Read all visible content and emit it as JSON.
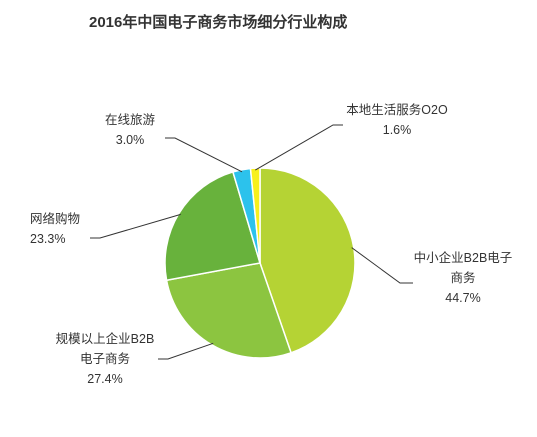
{
  "chart_data": {
    "type": "pie",
    "title": "2016年中国电子商务市场细分行业构成",
    "slices": [
      {
        "label_lines": [
          "中小企业B2B电子",
          "商务"
        ],
        "value_label": "44.7%",
        "value": 44.7,
        "color": "#b5d334"
      },
      {
        "label_lines": [
          "规模以上企业B2B",
          "电子商务"
        ],
        "value_label": "27.4%",
        "value": 27.4,
        "color": "#8cc540"
      },
      {
        "label_lines": [
          "网络购物"
        ],
        "value_label": "23.3%",
        "value": 23.3,
        "color": "#68b23c"
      },
      {
        "label_lines": [
          "在线旅游"
        ],
        "value_label": "3.0%",
        "value": 3.0,
        "color": "#2cc2ec"
      },
      {
        "label_lines": [
          "本地生活服务O2O"
        ],
        "value_label": "1.6%",
        "value": 1.6,
        "color": "#f7f01c"
      }
    ]
  }
}
